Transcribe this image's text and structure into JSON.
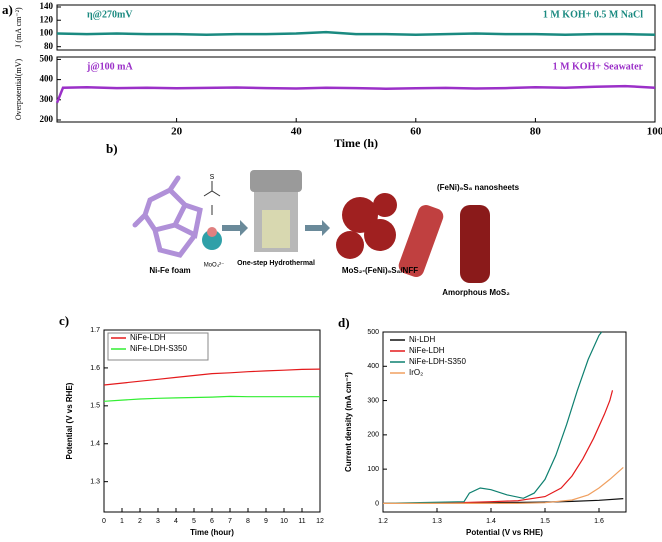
{
  "chart_data": [
    {
      "type": "line",
      "panel_label": "a)",
      "ylabel": "J (mA cm⁻²)",
      "annotations": [
        "η@270mV",
        "1 M KOH+ 0.5 M NaCl"
      ],
      "x": [
        0,
        5,
        10,
        15,
        20,
        25,
        30,
        35,
        40,
        45,
        50,
        55,
        60,
        65,
        70,
        75,
        80,
        85,
        90,
        95,
        100
      ],
      "series": [
        {
          "name": "η@270mV",
          "color": "#1a8a80",
          "values": [
            100,
            99,
            100,
            99,
            99,
            98,
            99,
            99,
            100,
            102,
            99,
            99,
            98,
            99,
            100,
            99,
            99,
            98,
            99,
            99,
            98
          ]
        }
      ],
      "xlim": [
        0,
        100
      ],
      "ylim": [
        75,
        143
      ],
      "yticks": [
        80,
        100,
        120,
        140
      ]
    },
    {
      "type": "line",
      "ylabel": "Overpotential(mV)",
      "xlabel": "Time (h)",
      "annotations": [
        "j@100 mA",
        "1 M KOH+ Seawater"
      ],
      "x": [
        0,
        1,
        5,
        10,
        15,
        20,
        25,
        30,
        35,
        40,
        45,
        50,
        55,
        60,
        65,
        70,
        75,
        80,
        85,
        90,
        95,
        100
      ],
      "series": [
        {
          "name": "j@100 mA",
          "color": "#9b30c8",
          "values": [
            285,
            360,
            362,
            358,
            360,
            357,
            359,
            361,
            358,
            356,
            360,
            358,
            355,
            357,
            359,
            356,
            358,
            362,
            360,
            365,
            368,
            360
          ]
        }
      ],
      "xlim": [
        0,
        100
      ],
      "ylim": [
        190,
        512
      ],
      "xticks": [
        20,
        40,
        60,
        80,
        100
      ],
      "yticks": [
        200,
        300,
        400,
        500
      ]
    },
    {
      "type": "line",
      "panel_label": "c)",
      "xlabel": "Time (hour)",
      "ylabel": "Potential (V vs RHE)",
      "legend": "upper left",
      "x": [
        0,
        1,
        2,
        3,
        4,
        5,
        6,
        7,
        8,
        9,
        10,
        11,
        12
      ],
      "series": [
        {
          "name": "NiFe-LDH",
          "color": "#e41a1c",
          "values": [
            1.555,
            1.56,
            1.565,
            1.57,
            1.575,
            1.58,
            1.585,
            1.587,
            1.59,
            1.592,
            1.594,
            1.596,
            1.597
          ]
        },
        {
          "name": "NiFe-LDH-S350",
          "color": "#33ee33",
          "values": [
            1.512,
            1.515,
            1.518,
            1.52,
            1.521,
            1.522,
            1.523,
            1.525,
            1.524,
            1.524,
            1.524,
            1.524,
            1.524
          ]
        }
      ],
      "xlim": [
        0,
        12
      ],
      "ylim": [
        1.22,
        1.7
      ],
      "xticks": [
        0,
        1,
        2,
        3,
        4,
        5,
        6,
        7,
        8,
        9,
        10,
        11,
        12
      ],
      "yticks": [
        1.3,
        1.4,
        1.5,
        1.6,
        1.7
      ]
    },
    {
      "type": "line",
      "panel_label": "d)",
      "xlabel": "Potential (V vs RHE)",
      "ylabel": "Current density (mA cm⁻²)",
      "legend": "upper left",
      "series": [
        {
          "name": "Ni-LDH",
          "color": "#111111",
          "x": [
            1.2,
            1.3,
            1.4,
            1.5,
            1.55,
            1.6,
            1.645
          ],
          "values": [
            0,
            0,
            2,
            4,
            6,
            9,
            14
          ]
        },
        {
          "name": "NiFe-LDH",
          "color": "#e41a1c",
          "x": [
            1.2,
            1.3,
            1.4,
            1.45,
            1.5,
            1.53,
            1.55,
            1.57,
            1.59,
            1.61,
            1.62,
            1.625
          ],
          "values": [
            0,
            0,
            5,
            8,
            20,
            45,
            80,
            130,
            190,
            260,
            300,
            330
          ]
        },
        {
          "name": "NiFe-LDH-S350",
          "color": "#0e8070",
          "x": [
            1.2,
            1.35,
            1.36,
            1.38,
            1.4,
            1.43,
            1.46,
            1.48,
            1.5,
            1.52,
            1.54,
            1.56,
            1.58,
            1.6,
            1.605
          ],
          "values": [
            0,
            5,
            30,
            45,
            40,
            25,
            15,
            30,
            70,
            140,
            230,
            330,
            420,
            490,
            500
          ]
        },
        {
          "name": "IrO₂",
          "color": "#f0a060",
          "x": [
            1.2,
            1.45,
            1.5,
            1.55,
            1.58,
            1.6,
            1.62,
            1.645
          ],
          "values": [
            0,
            0,
            2,
            10,
            25,
            45,
            70,
            105
          ]
        }
      ],
      "xlim": [
        1.2,
        1.65
      ],
      "ylim": [
        -25,
        500
      ],
      "xticks": [
        1.2,
        1.3,
        1.4,
        1.5,
        1.6
      ],
      "yticks": [
        0,
        100,
        200,
        300,
        400,
        500
      ]
    }
  ],
  "schematic": {
    "panel_label": "b)",
    "labels": [
      "Ni-Fe foam",
      "MoO₄²⁻",
      "One-step Hydrothermal",
      "MoS₂-(FeNi)₉S₈/NFF",
      "(FeNi)₉S₈ nanosheets",
      "Amorphous MoS₂"
    ]
  }
}
